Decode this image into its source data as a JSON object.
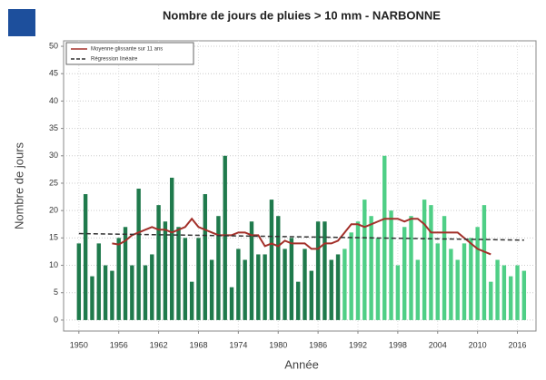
{
  "chart_data": {
    "type": "bar",
    "title": "Nombre de jours de pluies > 10 mm - NARBONNE",
    "x_label": "Année",
    "y_label": "Nombre de jours",
    "x": [
      1950,
      1951,
      1952,
      1953,
      1954,
      1955,
      1956,
      1957,
      1958,
      1959,
      1960,
      1961,
      1962,
      1963,
      1964,
      1965,
      1966,
      1967,
      1968,
      1969,
      1970,
      1971,
      1972,
      1973,
      1974,
      1975,
      1976,
      1977,
      1978,
      1979,
      1980,
      1981,
      1982,
      1983,
      1984,
      1985,
      1986,
      1987,
      1988,
      1989,
      1990,
      1991,
      1992,
      1993,
      1994,
      1995,
      1996,
      1997,
      1998,
      1999,
      2000,
      2001,
      2002,
      2003,
      2004,
      2005,
      2006,
      2007,
      2008,
      2009,
      2010,
      2011,
      2012,
      2013,
      2014,
      2015,
      2016,
      2017
    ],
    "values": [
      14,
      23,
      8,
      14,
      10,
      9,
      15,
      17,
      10,
      24,
      10,
      12,
      21,
      18,
      26,
      17,
      15,
      7,
      15,
      23,
      11,
      19,
      30,
      6,
      13,
      11,
      18,
      12,
      12,
      22,
      19,
      13,
      15,
      7,
      13,
      9,
      18,
      18,
      11,
      12,
      13,
      16,
      18,
      22,
      19,
      15,
      30,
      20,
      10,
      17,
      19,
      11,
      22,
      21,
      14,
      19,
      13,
      11,
      14,
      15,
      17,
      21,
      7,
      11,
      10,
      8,
      10,
      9
    ],
    "bar_colors": [
      "#1f7a4c",
      "#1f7a4c",
      "#1f7a4c",
      "#1f7a4c",
      "#1f7a4c",
      "#1f7a4c",
      "#1f7a4c",
      "#1f7a4c",
      "#1f7a4c",
      "#1f7a4c",
      "#1f7a4c",
      "#1f7a4c",
      "#1f7a4c",
      "#1f7a4c",
      "#1f7a4c",
      "#1f7a4c",
      "#1f7a4c",
      "#1f7a4c",
      "#1f7a4c",
      "#1f7a4c",
      "#1f7a4c",
      "#1f7a4c",
      "#1f7a4c",
      "#1f7a4c",
      "#1f7a4c",
      "#1f7a4c",
      "#1f7a4c",
      "#1f7a4c",
      "#1f7a4c",
      "#1f7a4c",
      "#1f7a4c",
      "#1f7a4c",
      "#1f7a4c",
      "#1f7a4c",
      "#1f7a4c",
      "#1f7a4c",
      "#1f7a4c",
      "#1f7a4c",
      "#1f7a4c",
      "#1f7a4c",
      "#4fcf86",
      "#4fcf86",
      "#4fcf86",
      "#4fcf86",
      "#4fcf86",
      "#4fcf86",
      "#4fcf86",
      "#4fcf86",
      "#4fcf86",
      "#4fcf86",
      "#4fcf86",
      "#4fcf86",
      "#4fcf86",
      "#4fcf86",
      "#4fcf86",
      "#4fcf86",
      "#4fcf86",
      "#4fcf86",
      "#4fcf86",
      "#4fcf86",
      "#4fcf86",
      "#4fcf86",
      "#4fcf86",
      "#4fcf86",
      "#4fcf86",
      "#4fcf86",
      "#4fcf86",
      "#4fcf86"
    ],
    "series": [
      {
        "name": "Moyenne glissante sur 11 ans",
        "color": "#a3302a",
        "dashed": false,
        "x": [
          1955,
          1956,
          1957,
          1958,
          1959,
          1960,
          1961,
          1962,
          1963,
          1964,
          1965,
          1966,
          1967,
          1968,
          1969,
          1970,
          1971,
          1972,
          1973,
          1974,
          1975,
          1976,
          1977,
          1978,
          1979,
          1980,
          1981,
          1982,
          1983,
          1984,
          1985,
          1986,
          1987,
          1988,
          1989,
          1990,
          1991,
          1992,
          1993,
          1994,
          1995,
          1996,
          1997,
          1998,
          1999,
          2000,
          2001,
          2002,
          2003,
          2004,
          2005,
          2006,
          2007,
          2008,
          2009,
          2010,
          2011,
          2012
        ],
        "values": [
          14,
          13.8,
          14.5,
          15.5,
          16,
          16.5,
          17,
          16.5,
          16.5,
          16,
          16.5,
          17,
          18.5,
          17,
          16.5,
          16,
          15.5,
          15.5,
          15.5,
          16,
          16,
          15.5,
          15.5,
          13.5,
          14,
          13.5,
          14.5,
          14,
          14,
          14,
          13,
          13,
          14,
          14,
          14.5,
          16,
          17.5,
          17.5,
          17,
          17.5,
          18,
          18.5,
          18.5,
          18.5,
          18,
          18.5,
          18.5,
          17.5,
          16,
          16,
          16,
          16,
          16,
          15,
          14,
          13,
          12.5,
          12
        ]
      },
      {
        "name": "Régression linéaire",
        "color": "#333333",
        "dashed": true,
        "x": [
          1950,
          2017
        ],
        "values": [
          15.8,
          14.6
        ]
      }
    ],
    "xlim": [
      1947.7,
      2018.8
    ],
    "xticks": [
      1950,
      1956,
      1962,
      1968,
      1974,
      1980,
      1986,
      1992,
      1998,
      2004,
      2010,
      2016
    ],
    "ylim": [
      -2,
      51
    ],
    "yticks": [
      0,
      5,
      10,
      15,
      20,
      25,
      30,
      35,
      40,
      45,
      50
    ],
    "grid": true,
    "legend": "top-left"
  }
}
